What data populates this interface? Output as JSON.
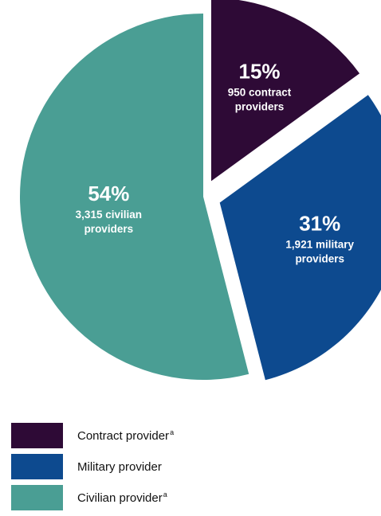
{
  "chart_data": {
    "type": "pie",
    "title": "",
    "slices": [
      {
        "name": "Contract provider",
        "note": "a",
        "percent": 15,
        "count_label": "950 contract",
        "count_label_line2": "providers",
        "percent_label": "15%",
        "color": "#2e0a36",
        "exploded": true
      },
      {
        "name": "Military provider",
        "note": "",
        "percent": 31,
        "count_label": "1,921 military",
        "count_label_line2": "providers",
        "percent_label": "31%",
        "color": "#0d4a8f",
        "exploded": true
      },
      {
        "name": "Civilian provider",
        "note": "a",
        "percent": 54,
        "count_label": "3,315 civilian",
        "count_label_line2": "providers",
        "percent_label": "54%",
        "color": "#4a9e94",
        "exploded": false
      }
    ],
    "legend_position": "bottom-left"
  }
}
